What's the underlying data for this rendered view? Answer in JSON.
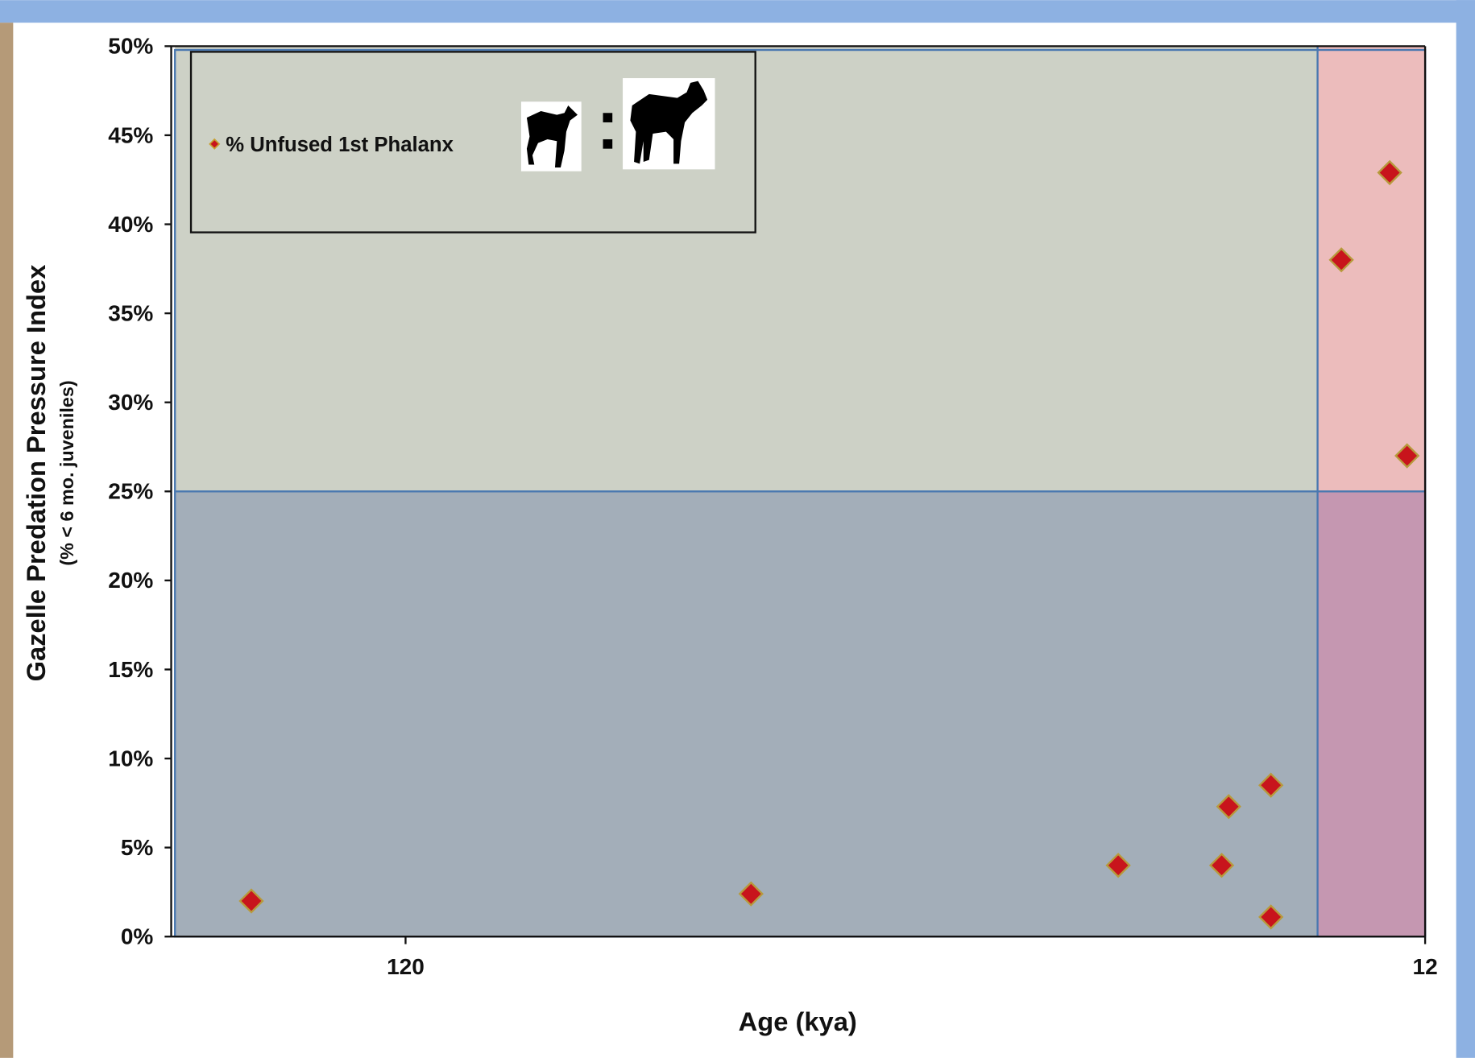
{
  "chart_data": {
    "type": "scatter",
    "xlabel": "Age (kya)",
    "ylabel": "Gazelle Predation Pressure Index",
    "ylabel_sub": "(% < 6 mo. juveniles)",
    "xscale": "log",
    "xlim": [
      202,
      12
    ],
    "xticks": [
      120,
      12
    ],
    "ylim": [
      0,
      50
    ],
    "yticks": [
      {
        "value": 0,
        "label": "0%"
      },
      {
        "value": 5,
        "label": "5%"
      },
      {
        "value": 10,
        "label": "10%"
      },
      {
        "value": 15,
        "label": "15%"
      },
      {
        "value": 20,
        "label": "20%"
      },
      {
        "value": 25,
        "label": "25%"
      },
      {
        "value": 30,
        "label": "30%"
      },
      {
        "value": 35,
        "label": "35%"
      },
      {
        "value": 40,
        "label": "40%"
      },
      {
        "value": 45,
        "label": "45%"
      },
      {
        "value": 50,
        "label": "50%"
      }
    ],
    "y_threshold": 25,
    "x_threshold": 15.3,
    "legend": "upper left",
    "series": [
      {
        "name": "% Unfused 1st Phalanx",
        "color": "#c8141c",
        "x": [
          170,
          55,
          24,
          19,
          18.7,
          17,
          17,
          14.5,
          13,
          12.5
        ],
        "values": [
          2.0,
          2.4,
          4.0,
          4.0,
          7.3,
          8.5,
          1.1,
          38.0,
          42.9,
          27.0
        ]
      }
    ]
  }
}
